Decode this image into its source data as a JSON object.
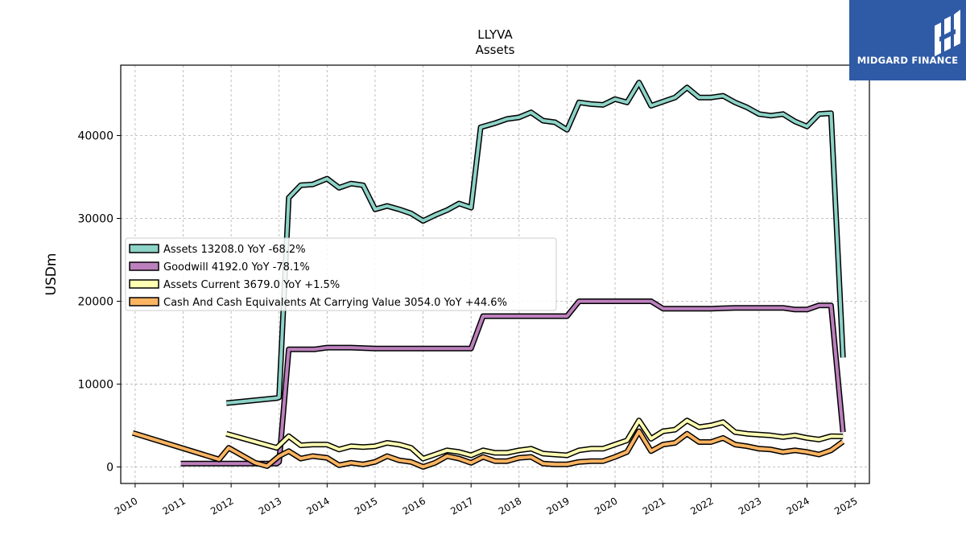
{
  "brand": {
    "name": "MIDGARD FINANCE",
    "bg_color": "#2f5aa5"
  },
  "chart_data": {
    "type": "line",
    "title": "LLYVA",
    "subtitle": "Assets",
    "ylabel": "USDm",
    "xlabel": "",
    "xlim": [
      2009.7,
      2025.3
    ],
    "ylim": [
      -2000,
      48500
    ],
    "grid": true,
    "legend_position": "center-left",
    "x_ticks": [
      "2010",
      "2011",
      "2012",
      "2013",
      "2014",
      "2015",
      "2016",
      "2017",
      "2018",
      "2019",
      "2020",
      "2021",
      "2022",
      "2023",
      "2024",
      "2025"
    ],
    "y_ticks": [
      0,
      10000,
      20000,
      30000,
      40000
    ],
    "y_tick_labels": [
      "0",
      "10000",
      "20000",
      "30000",
      "40000"
    ],
    "series": [
      {
        "name": "Assets",
        "legend": "Assets  13208.0 YoY -68.2%",
        "color": "#8dd3c7",
        "points": [
          [
            2011.9,
            7700
          ],
          [
            2012.95,
            8300
          ],
          [
            2013.0,
            8400
          ],
          [
            2013.2,
            32500
          ],
          [
            2013.45,
            34000
          ],
          [
            2013.7,
            34100
          ],
          [
            2014.0,
            34800
          ],
          [
            2014.25,
            33700
          ],
          [
            2014.5,
            34200
          ],
          [
            2014.75,
            34000
          ],
          [
            2015.0,
            31100
          ],
          [
            2015.25,
            31500
          ],
          [
            2015.5,
            31100
          ],
          [
            2015.75,
            30600
          ],
          [
            2016.0,
            29700
          ],
          [
            2016.25,
            30400
          ],
          [
            2016.5,
            31000
          ],
          [
            2016.75,
            31800
          ],
          [
            2017.0,
            31300
          ],
          [
            2017.2,
            41000
          ],
          [
            2017.5,
            41500
          ],
          [
            2017.75,
            42000
          ],
          [
            2018.0,
            42200
          ],
          [
            2018.25,
            42800
          ],
          [
            2018.5,
            41800
          ],
          [
            2018.75,
            41600
          ],
          [
            2019.0,
            40700
          ],
          [
            2019.25,
            44000
          ],
          [
            2019.5,
            43800
          ],
          [
            2019.75,
            43700
          ],
          [
            2020.0,
            44400
          ],
          [
            2020.25,
            44000
          ],
          [
            2020.5,
            46400
          ],
          [
            2020.75,
            43600
          ],
          [
            2021.0,
            44100
          ],
          [
            2021.25,
            44600
          ],
          [
            2021.5,
            45800
          ],
          [
            2021.75,
            44600
          ],
          [
            2022.0,
            44600
          ],
          [
            2022.25,
            44800
          ],
          [
            2022.5,
            44000
          ],
          [
            2022.75,
            43400
          ],
          [
            2023.0,
            42600
          ],
          [
            2023.25,
            42400
          ],
          [
            2023.5,
            42600
          ],
          [
            2023.75,
            41700
          ],
          [
            2024.0,
            41100
          ],
          [
            2024.25,
            42600
          ],
          [
            2024.5,
            42700
          ],
          [
            2024.75,
            13208
          ]
        ]
      },
      {
        "name": "Goodwill",
        "legend": "Goodwill  4192.0 YoY -78.1%",
        "color": "#bc80bd",
        "points": [
          [
            2010.95,
            400
          ],
          [
            2012.95,
            400
          ],
          [
            2013.0,
            600
          ],
          [
            2013.2,
            14200
          ],
          [
            2013.5,
            14200
          ],
          [
            2013.75,
            14200
          ],
          [
            2014.0,
            14400
          ],
          [
            2014.5,
            14400
          ],
          [
            2015.0,
            14300
          ],
          [
            2015.5,
            14300
          ],
          [
            2016.0,
            14300
          ],
          [
            2016.5,
            14300
          ],
          [
            2017.0,
            14300
          ],
          [
            2017.25,
            18200
          ],
          [
            2017.75,
            18200
          ],
          [
            2018.25,
            18200
          ],
          [
            2018.75,
            18200
          ],
          [
            2019.0,
            18200
          ],
          [
            2019.25,
            20000
          ],
          [
            2019.75,
            20000
          ],
          [
            2020.25,
            20000
          ],
          [
            2020.75,
            20000
          ],
          [
            2021.0,
            19100
          ],
          [
            2021.5,
            19100
          ],
          [
            2022.0,
            19100
          ],
          [
            2022.5,
            19200
          ],
          [
            2023.0,
            19200
          ],
          [
            2023.5,
            19200
          ],
          [
            2023.75,
            19000
          ],
          [
            2024.0,
            19000
          ],
          [
            2024.25,
            19500
          ],
          [
            2024.5,
            19500
          ],
          [
            2024.75,
            4192
          ]
        ]
      },
      {
        "name": "Assets Current",
        "legend": "Assets Current  3679.0 YoY +1.5%",
        "color": "#ffffb3",
        "points": [
          [
            2011.9,
            4000
          ],
          [
            2012.95,
            2300
          ],
          [
            2013.2,
            3700
          ],
          [
            2013.45,
            2600
          ],
          [
            2013.7,
            2700
          ],
          [
            2014.0,
            2700
          ],
          [
            2014.25,
            2100
          ],
          [
            2014.5,
            2500
          ],
          [
            2014.75,
            2400
          ],
          [
            2015.0,
            2500
          ],
          [
            2015.25,
            2900
          ],
          [
            2015.5,
            2700
          ],
          [
            2015.75,
            2300
          ],
          [
            2016.0,
            1000
          ],
          [
            2016.25,
            1500
          ],
          [
            2016.5,
            2000
          ],
          [
            2016.75,
            1800
          ],
          [
            2017.0,
            1400
          ],
          [
            2017.25,
            2000
          ],
          [
            2017.5,
            1700
          ],
          [
            2017.75,
            1700
          ],
          [
            2018.0,
            2000
          ],
          [
            2018.25,
            2200
          ],
          [
            2018.5,
            1600
          ],
          [
            2018.75,
            1500
          ],
          [
            2019.0,
            1400
          ],
          [
            2019.25,
            2000
          ],
          [
            2019.5,
            2200
          ],
          [
            2019.75,
            2200
          ],
          [
            2020.0,
            2700
          ],
          [
            2020.25,
            3200
          ],
          [
            2020.5,
            5600
          ],
          [
            2020.75,
            3400
          ],
          [
            2021.0,
            4300
          ],
          [
            2021.25,
            4500
          ],
          [
            2021.5,
            5600
          ],
          [
            2021.75,
            4800
          ],
          [
            2022.0,
            5000
          ],
          [
            2022.25,
            5400
          ],
          [
            2022.5,
            4200
          ],
          [
            2022.75,
            4000
          ],
          [
            2023.0,
            3900
          ],
          [
            2023.25,
            3800
          ],
          [
            2023.5,
            3600
          ],
          [
            2023.75,
            3800
          ],
          [
            2024.0,
            3500
          ],
          [
            2024.25,
            3300
          ],
          [
            2024.5,
            3700
          ],
          [
            2024.75,
            3679
          ]
        ]
      },
      {
        "name": "Cash And Cash Equivalents At Carrying Value",
        "legend": "Cash And Cash Equivalents At Carrying Value  3054.0 YoY +44.6%",
        "color": "#fdb462",
        "points": [
          [
            2009.95,
            4100
          ],
          [
            2011.75,
            900
          ],
          [
            2011.95,
            2300
          ],
          [
            2012.5,
            500
          ],
          [
            2012.75,
            100
          ],
          [
            2013.0,
            1300
          ],
          [
            2013.2,
            1900
          ],
          [
            2013.45,
            1000
          ],
          [
            2013.7,
            1300
          ],
          [
            2014.0,
            1100
          ],
          [
            2014.25,
            200
          ],
          [
            2014.5,
            500
          ],
          [
            2014.75,
            300
          ],
          [
            2015.0,
            600
          ],
          [
            2015.25,
            1300
          ],
          [
            2015.5,
            800
          ],
          [
            2015.75,
            600
          ],
          [
            2016.0,
            0
          ],
          [
            2016.25,
            500
          ],
          [
            2016.5,
            1300
          ],
          [
            2016.75,
            1000
          ],
          [
            2017.0,
            500
          ],
          [
            2017.25,
            1200
          ],
          [
            2017.5,
            700
          ],
          [
            2017.75,
            700
          ],
          [
            2018.0,
            1100
          ],
          [
            2018.25,
            1200
          ],
          [
            2018.5,
            400
          ],
          [
            2018.75,
            300
          ],
          [
            2019.0,
            300
          ],
          [
            2019.25,
            600
          ],
          [
            2019.5,
            700
          ],
          [
            2019.75,
            700
          ],
          [
            2020.0,
            1200
          ],
          [
            2020.25,
            1800
          ],
          [
            2020.5,
            4300
          ],
          [
            2020.75,
            1900
          ],
          [
            2021.0,
            2700
          ],
          [
            2021.25,
            2900
          ],
          [
            2021.5,
            4000
          ],
          [
            2021.75,
            3000
          ],
          [
            2022.0,
            3000
          ],
          [
            2022.25,
            3500
          ],
          [
            2022.5,
            2700
          ],
          [
            2022.75,
            2500
          ],
          [
            2023.0,
            2200
          ],
          [
            2023.25,
            2100
          ],
          [
            2023.5,
            1800
          ],
          [
            2023.75,
            2000
          ],
          [
            2024.0,
            1800
          ],
          [
            2024.25,
            1500
          ],
          [
            2024.5,
            2000
          ],
          [
            2024.75,
            3054
          ]
        ]
      }
    ]
  }
}
